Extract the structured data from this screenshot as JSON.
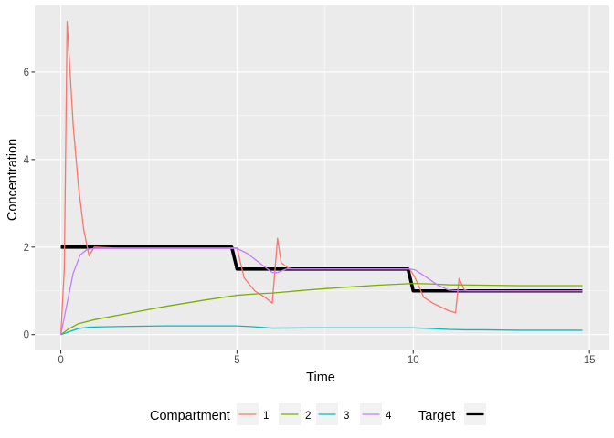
{
  "chart_data": {
    "type": "line",
    "title": "",
    "xlabel": "Time",
    "ylabel": "Concentration",
    "xlim": [
      -0.74,
      15.54
    ],
    "ylim": [
      -0.36,
      7.52
    ],
    "x_ticks": [
      0,
      5,
      10,
      15
    ],
    "y_ticks": [
      0,
      2,
      4,
      6
    ],
    "grid": true,
    "legend_position": "bottom",
    "legend": {
      "compartment_title": "Compartment",
      "target_title": "Target",
      "compartment_keys": [
        "1",
        "2",
        "3",
        "4"
      ]
    },
    "colors": {
      "c1": "#F8766D",
      "c2": "#7CAE00",
      "c3": "#00BFC4",
      "c4": "#C77CFF",
      "target": "#000000",
      "panel": "#EBEBEB",
      "grid": "#FFFFFF",
      "axis_text": "#4D4D4D"
    },
    "series": [
      {
        "name": "1",
        "x": [
          0,
          0.1,
          0.18,
          0.35,
          0.5,
          0.65,
          0.8,
          0.95,
          1.5,
          4.8,
          5.0,
          5.2,
          5.5,
          5.8,
          6.0,
          6.15,
          6.25,
          6.45,
          6.6,
          9.9,
          10.05,
          10.3,
          10.6,
          11.0,
          11.2,
          11.3,
          11.45,
          11.55,
          14.8
        ],
        "y": [
          0,
          1.5,
          7.15,
          4.8,
          3.4,
          2.4,
          1.8,
          2.0,
          1.98,
          1.98,
          1.98,
          1.3,
          1.0,
          0.85,
          0.72,
          2.2,
          1.65,
          1.52,
          1.5,
          1.5,
          1.3,
          0.85,
          0.7,
          0.55,
          0.5,
          1.28,
          1.03,
          1.0,
          1.0
        ]
      },
      {
        "name": "2",
        "x": [
          0,
          0.2,
          0.5,
          1.0,
          2.0,
          3.0,
          4.0,
          5.0,
          5.5,
          6.0,
          7.0,
          8.0,
          9.0,
          10.0,
          10.5,
          11.0,
          12.0,
          13.0,
          14.0,
          14.8
        ],
        "y": [
          0,
          0.12,
          0.25,
          0.35,
          0.5,
          0.65,
          0.78,
          0.9,
          0.93,
          0.95,
          1.02,
          1.08,
          1.13,
          1.17,
          1.16,
          1.14,
          1.13,
          1.12,
          1.12,
          1.12
        ]
      },
      {
        "name": "3",
        "x": [
          0,
          0.25,
          0.5,
          0.8,
          1.2,
          2.0,
          3.0,
          4.0,
          5.0,
          5.5,
          6.0,
          7.0,
          8.0,
          9.0,
          10.0,
          10.5,
          11.0,
          11.5,
          12.0,
          13.0,
          14.0,
          14.8
        ],
        "y": [
          0,
          0.07,
          0.14,
          0.17,
          0.18,
          0.19,
          0.2,
          0.2,
          0.2,
          0.18,
          0.15,
          0.155,
          0.155,
          0.155,
          0.155,
          0.14,
          0.12,
          0.11,
          0.11,
          0.1,
          0.1,
          0.1
        ]
      },
      {
        "name": "4",
        "x": [
          0,
          0.15,
          0.35,
          0.55,
          0.75,
          1.0,
          2.0,
          4.8,
          5.0,
          5.3,
          5.7,
          6.0,
          6.15,
          6.4,
          7.0,
          9.9,
          10.05,
          10.3,
          10.7,
          11.0,
          11.3,
          11.5,
          12.0,
          14.8
        ],
        "y": [
          0,
          0.6,
          1.4,
          1.82,
          1.95,
          1.97,
          1.97,
          1.97,
          1.97,
          1.85,
          1.6,
          1.42,
          1.42,
          1.5,
          1.5,
          1.5,
          1.48,
          1.35,
          1.13,
          1.02,
          1.0,
          1.0,
          1.0,
          1.0
        ]
      },
      {
        "name": "Target",
        "x": [
          0,
          4.85,
          5.0,
          9.85,
          10.0,
          14.8
        ],
        "y": [
          2,
          2,
          1.5,
          1.5,
          1.0,
          1.0
        ]
      }
    ]
  }
}
